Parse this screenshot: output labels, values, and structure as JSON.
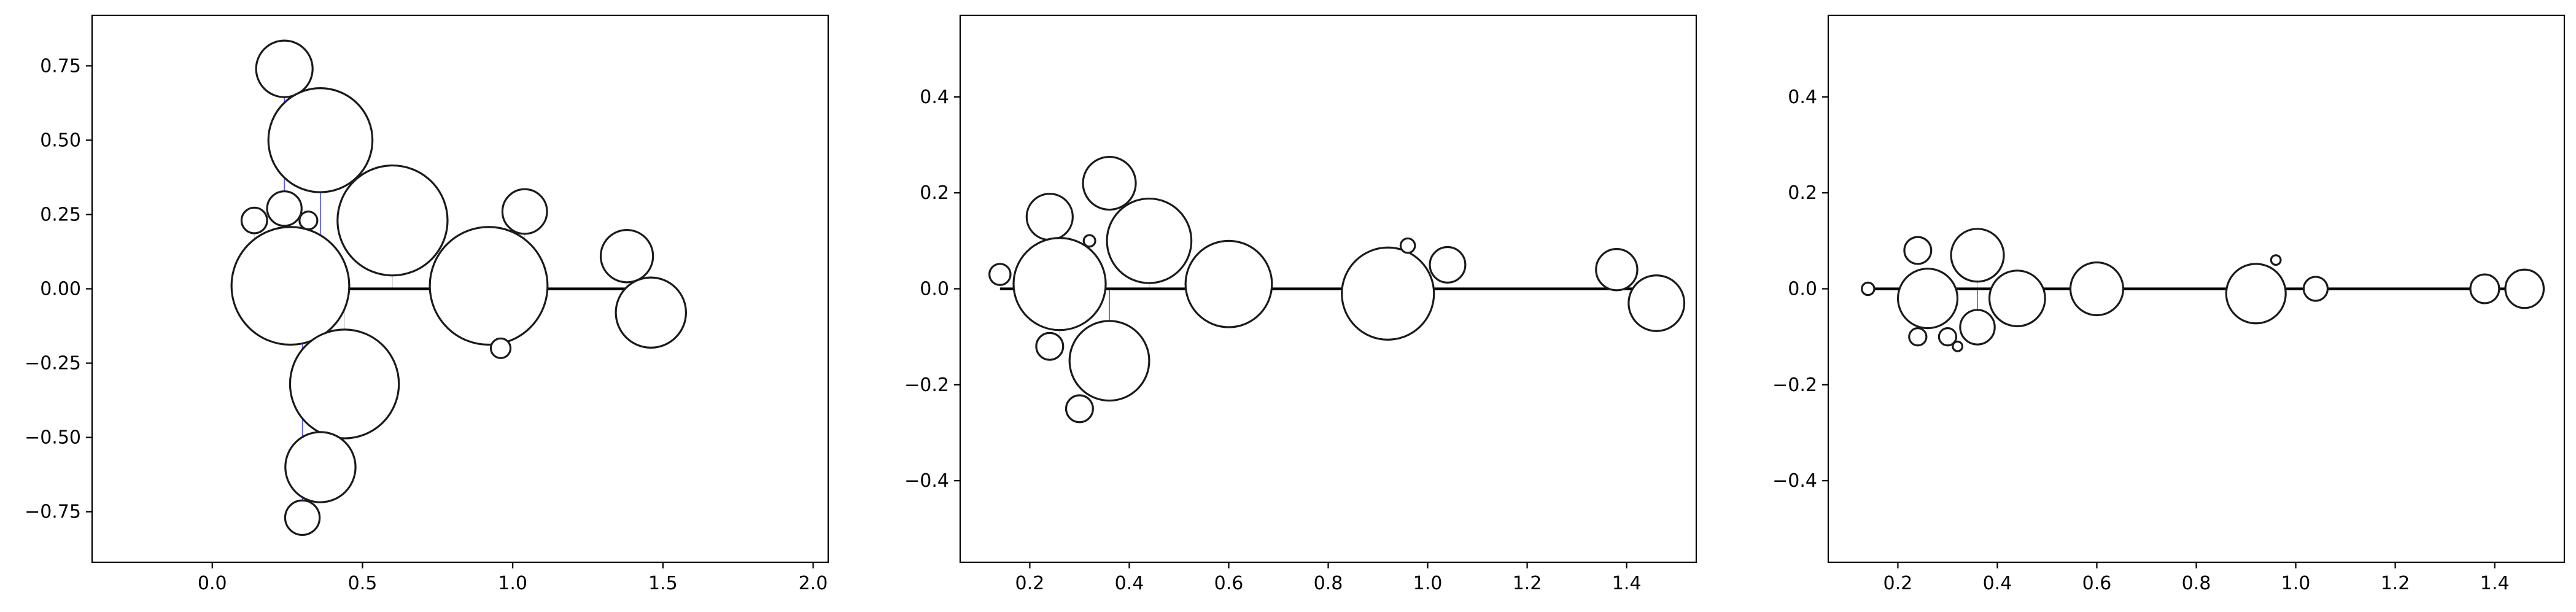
{
  "chart_data": [
    {
      "type": "scatter",
      "title": "",
      "xlabel": "",
      "ylabel": "",
      "xlim": [
        -0.4,
        2.05
      ],
      "ylim": [
        -0.92,
        0.92
      ],
      "xticks": [
        0.0,
        0.5,
        1.0,
        1.5,
        2.0
      ],
      "xtick_labels": [
        "0.0",
        "0.5",
        "1.0",
        "1.5",
        "2.0"
      ],
      "yticks": [
        -0.75,
        -0.5,
        -0.25,
        0.0,
        0.25,
        0.5,
        0.75
      ],
      "ytick_labels": [
        "−0.75",
        "−0.50",
        "−0.25",
        "0.00",
        "0.25",
        "0.50",
        "0.75"
      ],
      "grid": false,
      "baseline": {
        "x_start": 0.14,
        "x_end": 1.46,
        "y": 0.0
      },
      "bubbles": [
        {
          "x": 0.24,
          "y": 0.74,
          "r": 0.095
        },
        {
          "x": 0.36,
          "y": 0.5,
          "r": 0.175
        },
        {
          "x": 0.24,
          "y": 0.27,
          "r": 0.058
        },
        {
          "x": 0.14,
          "y": 0.23,
          "r": 0.043
        },
        {
          "x": 0.32,
          "y": 0.23,
          "r": 0.03
        },
        {
          "x": 0.6,
          "y": 0.23,
          "r": 0.185
        },
        {
          "x": 1.04,
          "y": 0.26,
          "r": 0.075
        },
        {
          "x": 0.26,
          "y": 0.01,
          "r": 0.198
        },
        {
          "x": 0.92,
          "y": 0.01,
          "r": 0.198
        },
        {
          "x": 1.38,
          "y": 0.11,
          "r": 0.088
        },
        {
          "x": 1.46,
          "y": -0.08,
          "r": 0.118
        },
        {
          "x": 0.96,
          "y": -0.2,
          "r": 0.033
        },
        {
          "x": 0.44,
          "y": -0.32,
          "r": 0.183
        },
        {
          "x": 0.36,
          "y": -0.6,
          "r": 0.118
        },
        {
          "x": 0.3,
          "y": -0.77,
          "r": 0.058
        }
      ],
      "tethers": [
        {
          "x": 0.24,
          "y0": 0.0,
          "y1": 0.74
        },
        {
          "x": 0.36,
          "y0": 0.0,
          "y1": 0.5
        },
        {
          "x": 0.3,
          "y0": 0.0,
          "y1": -0.77
        },
        {
          "x": 0.36,
          "y0": 0.0,
          "y1": -0.6
        }
      ],
      "graylines": [
        {
          "x": 0.14,
          "y0": 0.0,
          "y1": 0.23
        },
        {
          "x": 0.24,
          "y0": 0.0,
          "y1": 0.27
        },
        {
          "x": 0.32,
          "y0": 0.0,
          "y1": 0.23
        },
        {
          "x": 0.36,
          "y0": 0.0,
          "y1": 0.5
        },
        {
          "x": 0.44,
          "y0": 0.0,
          "y1": -0.32
        },
        {
          "x": 0.6,
          "y0": 0.0,
          "y1": 0.23
        },
        {
          "x": 0.92,
          "y0": 0.0,
          "y1": 0.01
        },
        {
          "x": 0.96,
          "y0": 0.0,
          "y1": -0.2
        },
        {
          "x": 1.04,
          "y0": 0.0,
          "y1": 0.26
        },
        {
          "x": 1.38,
          "y0": 0.0,
          "y1": 0.11
        },
        {
          "x": 1.46,
          "y0": 0.0,
          "y1": -0.08
        }
      ]
    },
    {
      "type": "scatter",
      "title": "",
      "xlabel": "",
      "ylabel": "",
      "xlim": [
        0.06,
        1.54
      ],
      "ylim": [
        -0.57,
        0.57
      ],
      "xticks": [
        0.2,
        0.4,
        0.6,
        0.8,
        1.0,
        1.2,
        1.4
      ],
      "xtick_labels": [
        "0.2",
        "0.4",
        "0.6",
        "0.8",
        "1.0",
        "1.2",
        "1.4"
      ],
      "yticks": [
        -0.4,
        -0.2,
        0.0,
        0.2,
        0.4
      ],
      "ytick_labels": [
        "−0.4",
        "−0.2",
        "0.0",
        "0.2",
        "0.4"
      ],
      "grid": false,
      "baseline": {
        "x_start": 0.14,
        "x_end": 1.46,
        "y": 0.0
      },
      "bubbles": [
        {
          "x": 0.14,
          "y": 0.03,
          "r": 0.022
        },
        {
          "x": 0.24,
          "y": 0.15,
          "r": 0.048
        },
        {
          "x": 0.24,
          "y": -0.12,
          "r": 0.028
        },
        {
          "x": 0.3,
          "y": -0.25,
          "r": 0.028
        },
        {
          "x": 0.32,
          "y": 0.1,
          "r": 0.012
        },
        {
          "x": 0.26,
          "y": 0.01,
          "r": 0.096
        },
        {
          "x": 0.36,
          "y": 0.22,
          "r": 0.055
        },
        {
          "x": 0.36,
          "y": -0.15,
          "r": 0.083
        },
        {
          "x": 0.44,
          "y": 0.1,
          "r": 0.088
        },
        {
          "x": 0.6,
          "y": 0.01,
          "r": 0.09
        },
        {
          "x": 0.92,
          "y": -0.01,
          "r": 0.096
        },
        {
          "x": 0.96,
          "y": 0.09,
          "r": 0.015
        },
        {
          "x": 1.04,
          "y": 0.05,
          "r": 0.037
        },
        {
          "x": 1.38,
          "y": 0.04,
          "r": 0.043
        },
        {
          "x": 1.46,
          "y": -0.03,
          "r": 0.058
        }
      ],
      "tethers": [
        {
          "x": 0.36,
          "y0": 0.0,
          "y1": -0.15
        }
      ],
      "graylines": [
        {
          "x": 0.24,
          "y0": 0.0,
          "y1": 0.15
        },
        {
          "x": 0.26,
          "y0": 0.0,
          "y1": -0.12
        },
        {
          "x": 0.36,
          "y0": 0.0,
          "y1": -0.15
        },
        {
          "x": 0.44,
          "y0": 0.0,
          "y1": 0.1
        },
        {
          "x": 0.6,
          "y0": 0.0,
          "y1": 0.01
        },
        {
          "x": 0.92,
          "y0": 0.0,
          "y1": -0.01
        }
      ]
    },
    {
      "type": "scatter",
      "title": "",
      "xlabel": "",
      "ylabel": "",
      "xlim": [
        0.06,
        1.54
      ],
      "ylim": [
        -0.57,
        0.57
      ],
      "xticks": [
        0.2,
        0.4,
        0.6,
        0.8,
        1.0,
        1.2,
        1.4
      ],
      "xtick_labels": [
        "0.2",
        "0.4",
        "0.6",
        "0.8",
        "1.0",
        "1.2",
        "1.4"
      ],
      "yticks": [
        -0.4,
        -0.2,
        0.0,
        0.2,
        0.4
      ],
      "ytick_labels": [
        "−0.4",
        "−0.2",
        "0.0",
        "0.2",
        "0.4"
      ],
      "grid": false,
      "baseline": {
        "x_start": 0.14,
        "x_end": 1.46,
        "y": 0.0
      },
      "bubbles": [
        {
          "x": 0.14,
          "y": 0.0,
          "r": 0.013
        },
        {
          "x": 0.24,
          "y": 0.08,
          "r": 0.028
        },
        {
          "x": 0.24,
          "y": -0.1,
          "r": 0.018
        },
        {
          "x": 0.3,
          "y": -0.1,
          "r": 0.018
        },
        {
          "x": 0.32,
          "y": -0.12,
          "r": 0.01
        },
        {
          "x": 0.26,
          "y": -0.02,
          "r": 0.062
        },
        {
          "x": 0.36,
          "y": 0.07,
          "r": 0.055
        },
        {
          "x": 0.36,
          "y": -0.08,
          "r": 0.036
        },
        {
          "x": 0.44,
          "y": -0.02,
          "r": 0.058
        },
        {
          "x": 0.6,
          "y": 0.0,
          "r": 0.055
        },
        {
          "x": 0.92,
          "y": -0.01,
          "r": 0.062
        },
        {
          "x": 0.96,
          "y": 0.06,
          "r": 0.01
        },
        {
          "x": 1.04,
          "y": 0.0,
          "r": 0.025
        },
        {
          "x": 1.38,
          "y": 0.0,
          "r": 0.03
        },
        {
          "x": 1.46,
          "y": 0.0,
          "r": 0.04
        }
      ],
      "tethers": [
        {
          "x": 0.36,
          "y0": 0.0,
          "y1": -0.08
        }
      ],
      "graylines": [
        {
          "x": 0.26,
          "y0": 0.0,
          "y1": -0.02
        },
        {
          "x": 0.36,
          "y0": 0.0,
          "y1": 0.07
        }
      ]
    }
  ]
}
